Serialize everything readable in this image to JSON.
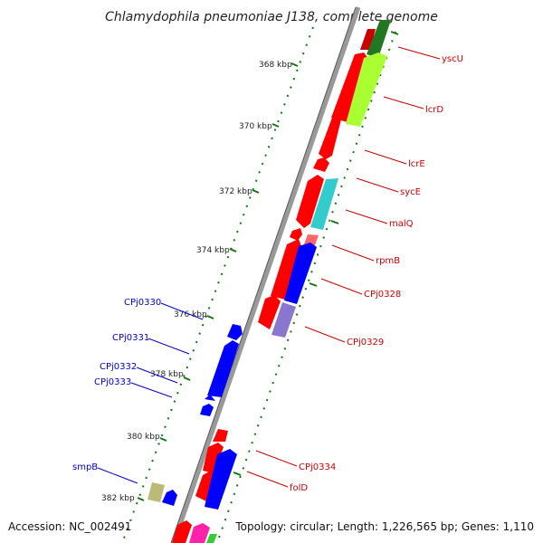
{
  "title": "Chlamydophila pneumoniae J138, complete genome",
  "colors": {
    "red": "#ff0000",
    "blue": "#0000ff",
    "lime": "#aaff33",
    "cyan": "#33cccc",
    "purple": "#8877cc",
    "olive": "#bbbb77",
    "magenta": "#ff22aa",
    "green": "#228822",
    "backbone": "#808080",
    "label_red": "#cc0000",
    "label_blue": "#0000cc",
    "tick_green": "#117711"
  },
  "ticks": [
    {
      "label": "368 kbp"
    },
    {
      "label": "370 kbp"
    },
    {
      "label": "372 kbp"
    },
    {
      "label": "374 kbp"
    },
    {
      "label": "376 kbp"
    },
    {
      "label": "378 kbp"
    },
    {
      "label": "380 kbp"
    },
    {
      "label": "382 kbp"
    }
  ],
  "labels": {
    "right": [
      "yscU",
      "lcrD",
      "lcrE",
      "sycE",
      "malQ",
      "rpmB",
      "CPj0328",
      "CPj0329",
      "CPj0334",
      "folD"
    ],
    "left": [
      "CPj0330",
      "CPj0331",
      "CPj0332",
      "CPj0333",
      "smpB"
    ]
  },
  "footer": {
    "accession": "Accession: NC_002491",
    "topology": "Topology: circular; Length: 1,226,565 bp; Genes: 1,110"
  }
}
